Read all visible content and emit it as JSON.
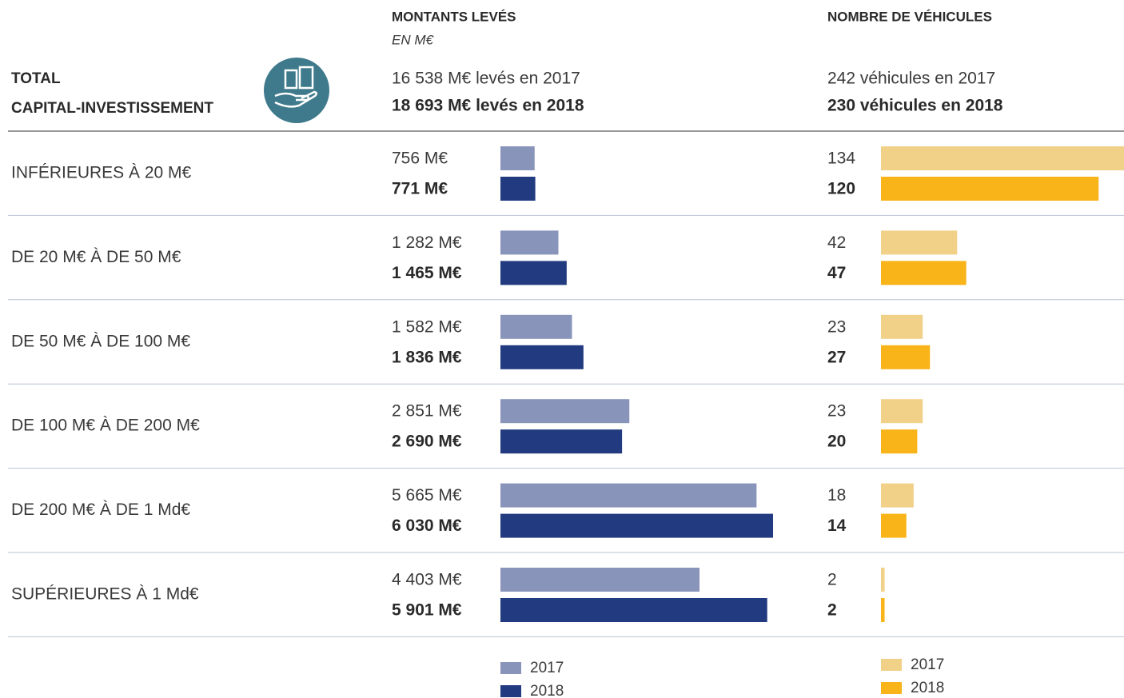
{
  "total_label": [
    "TOTAL",
    "CAPITAL-INVESTISSEMENT"
  ],
  "chart_data": [
    {
      "type": "bar",
      "title": "MONTANTS LEVÉS",
      "subtitle": "EN M€",
      "totals": [
        "16 538 M€ levés en 2017",
        "18 693 M€ levés en 2018"
      ],
      "categories": [
        "INFÉRIEURES À 20 M€",
        "DE 20 M€ À DE 50 M€",
        "DE 50 M€ À DE 100 M€",
        "DE 100 M€ À DE 200 M€",
        "DE 200 M€ À DE 1 Md€",
        "SUPÉRIEURES À 1 Md€"
      ],
      "series": [
        {
          "name": "2017",
          "color": "#8894ba",
          "values": [
            756,
            1282,
            1582,
            2851,
            5665,
            4403
          ],
          "value_labels": [
            "756 M€",
            "1 282 M€",
            "1 582 M€",
            "2 851 M€",
            "5 665 M€",
            "4 403 M€"
          ]
        },
        {
          "name": "2018",
          "color": "#223b80",
          "values": [
            771,
            1465,
            1836,
            2690,
            6030,
            5901
          ],
          "value_labels": [
            "771 M€",
            "1 465 M€",
            "1 836 M€",
            "2 690 M€",
            "6 030 M€",
            "5 901 M€"
          ]
        }
      ]
    },
    {
      "type": "bar",
      "title": "NOMBRE DE VÉHICULES",
      "totals": [
        "242 véhicules en 2017",
        "230 véhicules en 2018"
      ],
      "series": [
        {
          "name": "2017",
          "color": "#f1d088",
          "values": [
            134,
            42,
            23,
            23,
            18,
            2
          ]
        },
        {
          "name": "2018",
          "color": "#f8b418",
          "values": [
            120,
            47,
            27,
            20,
            14,
            2
          ]
        }
      ]
    }
  ]
}
